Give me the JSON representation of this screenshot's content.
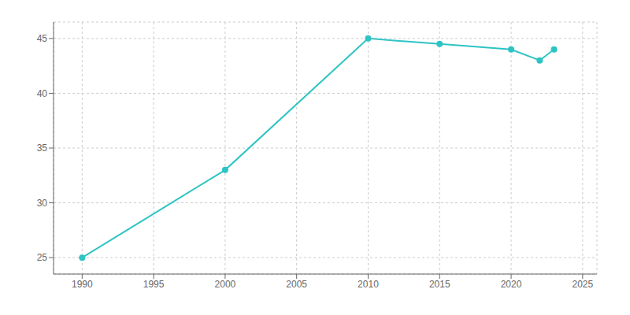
{
  "chart_data": {
    "type": "line",
    "x": [
      1990,
      2000,
      2010,
      2015,
      2020,
      2022,
      2023
    ],
    "values": [
      25,
      33,
      45,
      44.5,
      44,
      43,
      44
    ],
    "color": "#2EC4C4",
    "marker": "circle",
    "xlim": [
      1988,
      2026
    ],
    "ylim": [
      23.5,
      46.5
    ],
    "xticks": [
      1990,
      1995,
      2000,
      2005,
      2010,
      2015,
      2020,
      2025
    ],
    "yticks": [
      25,
      30,
      35,
      40,
      45
    ],
    "grid": true
  }
}
